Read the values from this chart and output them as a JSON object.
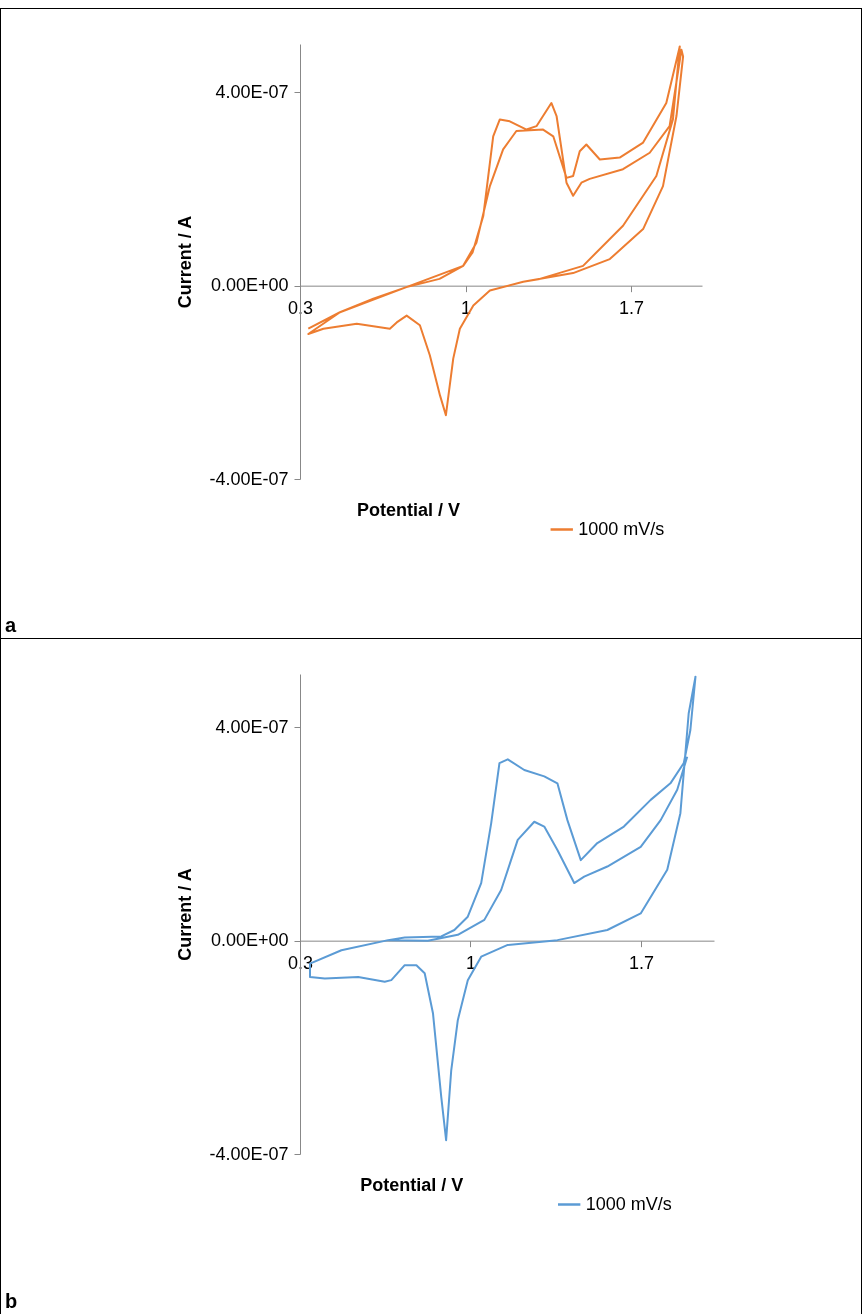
{
  "chart_data": [
    {
      "type": "line",
      "xlabel": "Potential / V",
      "ylabel": "Current / A",
      "xlim": [
        0.3,
        2.0
      ],
      "ylim": [
        -4e-07,
        5e-07
      ],
      "xticks": [
        0.3,
        1,
        1.7
      ],
      "yticks": [
        {
          "value": -4e-07,
          "label": "-4.00E-07"
        },
        {
          "value": 0,
          "label": "0.00E+00"
        },
        {
          "value": 4e-07,
          "label": "4.00E-07"
        }
      ],
      "grid": false,
      "legend": "bottom right",
      "annotations": [
        "a"
      ],
      "series": [
        {
          "name": "1000 mV/s",
          "color": "#ed7d31",
          "x": [
            0.335,
            0.469,
            0.61,
            0.75,
            0.89,
            0.99,
            1.03,
            1.075,
            1.117,
            1.145,
            1.187,
            1.258,
            1.3,
            1.363,
            1.385,
            1.427,
            1.455,
            1.49,
            1.525,
            1.666,
            1.779,
            1.863,
            1.913,
            1.92,
            1.892,
            1.835,
            1.751,
            1.61,
            1.455,
            1.244,
            1.103,
            1.033,
            0.976,
            0.948,
            0.917,
            0.892,
            0.849,
            0.807,
            0.751,
            0.709,
            0.68,
            0.54,
            0.399,
            0.335,
            0.469,
            0.75,
            0.99,
            1.046,
            1.103,
            1.159,
            1.215,
            1.328,
            1.371,
            1.427,
            1.455,
            1.483,
            1.511,
            1.568,
            1.652,
            1.751,
            1.849,
            1.906,
            1.877,
            1.807,
            1.666,
            1.497,
            1.314,
            1.244
          ],
          "values": [
            -8.9e-08,
            -5.5e-08,
            -2.7e-08,
            -3e-09,
            1.4e-08,
            4.1e-08,
            6.9e-08,
            1.44e-07,
            3.09e-07,
            3.44e-07,
            3.4e-07,
            3.23e-07,
            3.3e-07,
            3.78e-07,
            3.51e-07,
            2.13e-07,
            1.86e-07,
            2.13e-07,
            2.21e-07,
            2.41e-07,
            2.75e-07,
            3.3e-07,
            4.88e-07,
            4.74e-07,
            3.51e-07,
            2.06e-07,
            1.17e-07,
            5.5e-08,
            2.6e-08,
            8e-09,
            -1e-08,
            -4.1e-08,
            -8.9e-08,
            -1.51e-07,
            -2.68e-07,
            -2.27e-07,
            -1.44e-07,
            -8.2e-08,
            -6.2e-08,
            -7.6e-08,
            -8.9e-08,
            -7.9e-08,
            -8.9e-08,
            -1e-07,
            -5.5e-08,
            -3e-09,
            4.1e-08,
            8.9e-08,
            2.06e-07,
            2.82e-07,
            3.2e-07,
            3.23e-07,
            3.09e-07,
            2.23e-07,
            2.27e-07,
            2.78e-07,
            2.92e-07,
            2.61e-07,
            2.65e-07,
            2.96e-07,
            3.78e-07,
            4.95e-07,
            3.44e-07,
            2.27e-07,
            1.24e-07,
            4.1e-08,
            1.4e-08,
            8e-09
          ]
        }
      ]
    },
    {
      "type": "line",
      "xlabel": "Potential / V",
      "ylabel": "Current / A",
      "xlim": [
        0.3,
        2.0
      ],
      "ylim": [
        -4e-07,
        5e-07
      ],
      "xticks": [
        0.3,
        1,
        1.7
      ],
      "yticks": [
        {
          "value": -4e-07,
          "label": "-4.00E-07"
        },
        {
          "value": 0,
          "label": "0.00E+00"
        },
        {
          "value": 4e-07,
          "label": "4.00E-07"
        }
      ],
      "grid": false,
      "legend": "bottom right",
      "annotations": [
        "b"
      ],
      "series": [
        {
          "name": "1000 mV/s",
          "color": "#5b9bd5",
          "x": [
            0.341,
            0.47,
            0.662,
            0.73,
            0.88,
            0.934,
            0.989,
            1.044,
            1.085,
            1.119,
            1.153,
            1.221,
            1.303,
            1.357,
            1.398,
            1.453,
            1.521,
            1.63,
            1.74,
            1.821,
            1.876,
            1.903,
            1.924,
            1.896,
            1.862,
            1.808,
            1.699,
            1.562,
            1.357,
            1.153,
            1.044,
            0.989,
            0.948,
            0.921,
            0.9,
            0.88,
            0.846,
            0.812,
            0.778,
            0.73,
            0.675,
            0.648,
            0.539,
            0.402,
            0.341,
            0.341,
            0.47,
            0.662,
            0.825,
            0.948,
            1.057,
            1.126,
            1.194,
            1.262,
            1.303,
            1.357,
            1.426,
            1.467,
            1.562,
            1.699,
            1.781,
            1.849,
            1.89
          ],
          "values": [
            -4.3e-08,
            -1.8e-08,
            1e-09,
            6e-09,
            8e-09,
            2e-08,
            4.5e-08,
            1.08e-07,
            2.2e-07,
            3.33e-07,
            3.4e-07,
            3.2e-07,
            3.08e-07,
            2.95e-07,
            2.26e-07,
            1.51e-07,
            1.83e-07,
            2.14e-07,
            2.64e-07,
            2.95e-07,
            3.33e-07,
            3.95e-07,
            4.95e-07,
            4.26e-07,
            2.39e-07,
            1.33e-07,
            5.1e-08,
            2e-08,
            1e-09,
            -8e-09,
            -3e-08,
            -7.4e-08,
            -1.49e-07,
            -2.43e-07,
            -3.74e-07,
            -2.93e-07,
            -1.36e-07,
            -6.1e-08,
            -4.6e-08,
            -4.6e-08,
            -7.4e-08,
            -7.7e-08,
            -6.8e-08,
            -7.1e-08,
            -6.8e-08,
            -4.3e-08,
            -1.8e-08,
            1e-09,
            0,
            1.1e-08,
            3.9e-08,
            9.5e-08,
            1.89e-07,
            2.23e-07,
            2.14e-07,
            1.7e-07,
            1.08e-07,
            1.2e-07,
            1.39e-07,
            1.76e-07,
            2.26e-07,
            2.83e-07,
            3.45e-07
          ]
        }
      ]
    }
  ]
}
